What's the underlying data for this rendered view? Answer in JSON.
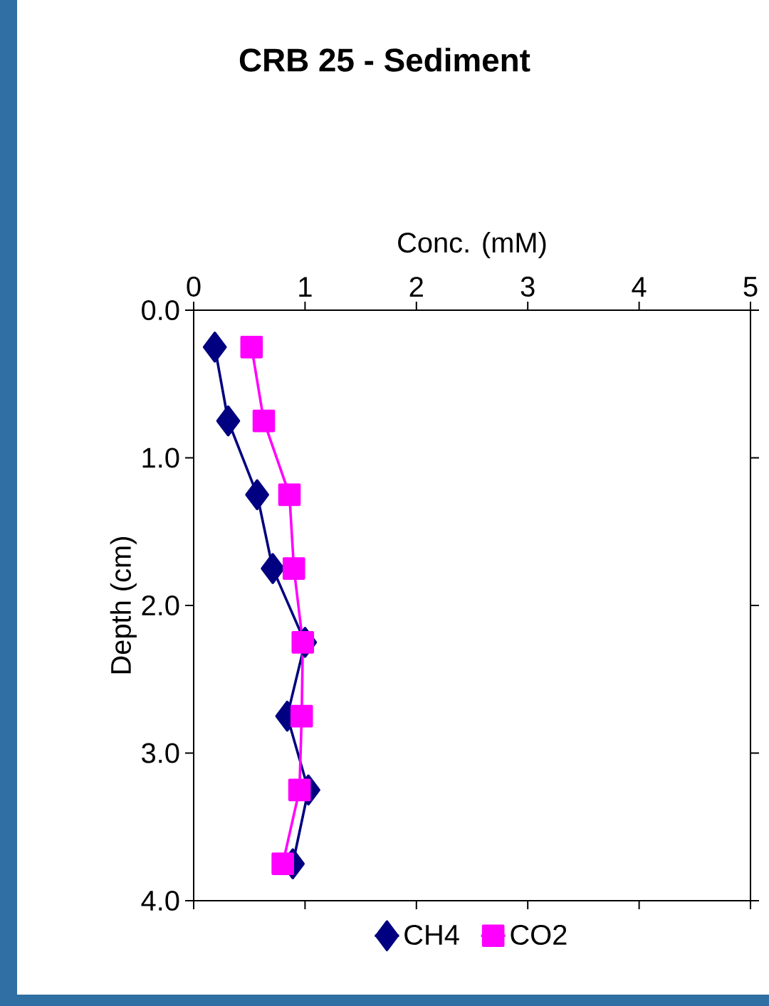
{
  "chart_data": {
    "type": "line",
    "title": "CRB 25 - Sediment",
    "xlabel": "Conc. (mM)",
    "ylabel": "Depth (cm)",
    "xlim": [
      0,
      5
    ],
    "xticks": [
      0,
      1,
      2,
      3,
      4,
      5
    ],
    "ylim": [
      4,
      0
    ],
    "yticks": [
      {
        "value": 0,
        "label": "0.0"
      },
      {
        "value": 1,
        "label": "1.0"
      },
      {
        "value": 2,
        "label": "2.0"
      },
      {
        "value": 3,
        "label": "3.0"
      },
      {
        "value": 4,
        "label": "4.0"
      }
    ],
    "grid": false,
    "legend": "bottom",
    "line_style": "solid",
    "series": [
      {
        "name": "CH4",
        "color": "#000080",
        "marker": "diamond",
        "x": [
          0.19,
          0.31,
          0.57,
          0.71,
          1.0,
          0.84,
          1.03,
          0.89
        ],
        "values": [
          0.25,
          0.75,
          1.25,
          1.75,
          2.25,
          2.75,
          3.25,
          3.75
        ]
      },
      {
        "name": "CO2",
        "color": "#ff00ff",
        "marker": "square",
        "x": [
          0.52,
          0.63,
          0.86,
          0.9,
          0.98,
          0.97,
          0.95,
          0.8
        ],
        "values": [
          0.25,
          0.75,
          1.25,
          1.75,
          2.25,
          2.75,
          3.25,
          3.75
        ]
      }
    ]
  }
}
